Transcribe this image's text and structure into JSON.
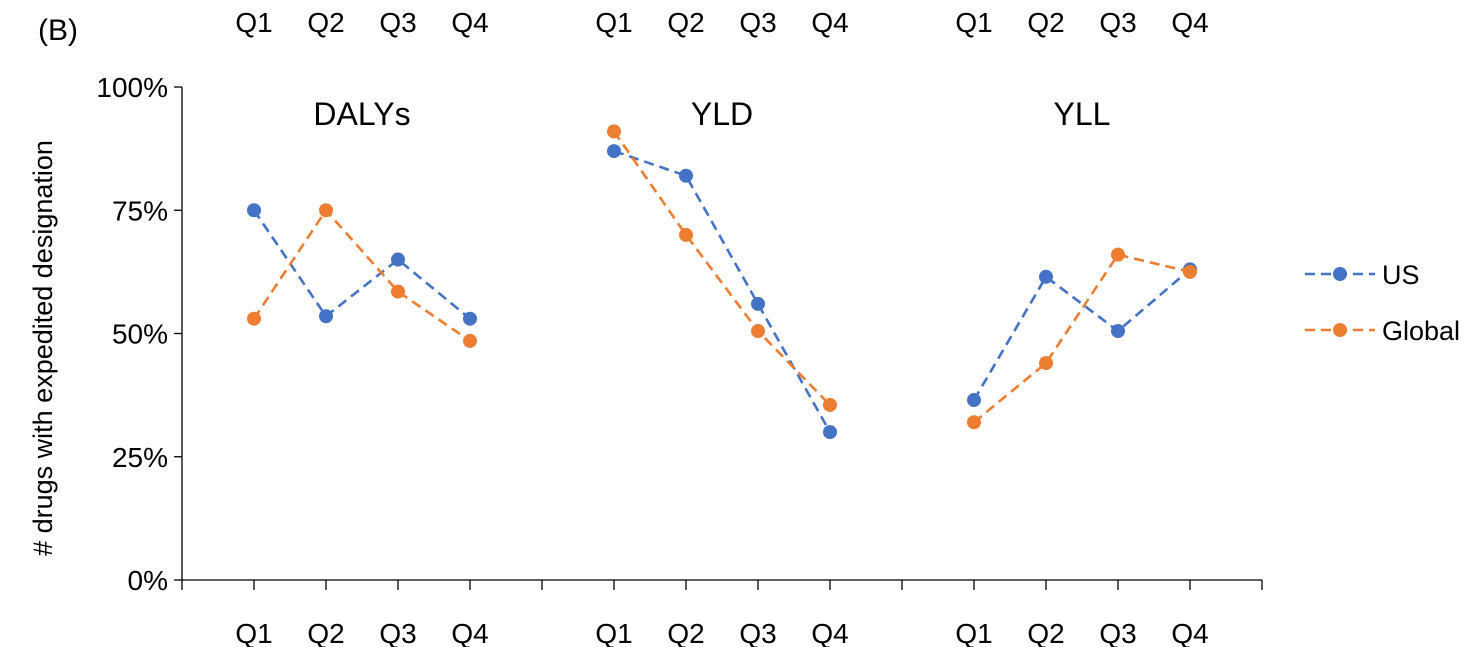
{
  "figure": {
    "panel_tag": "(B)"
  },
  "chart_data": {
    "type": "line",
    "ylabel": "# drugs with expedited designation",
    "ylim": [
      0,
      1
    ],
    "y_ticks": [
      "0%",
      "25%",
      "50%",
      "75%",
      "100%"
    ],
    "y_tick_values": [
      0,
      0.25,
      0.5,
      0.75,
      1.0
    ],
    "grid": false,
    "legend_position": "right",
    "categories": [
      "Q1",
      "Q2",
      "Q3",
      "Q4"
    ],
    "colors": {
      "US": "#4472C4",
      "Global": "#ED7D31"
    },
    "panels": [
      {
        "title": "DALYs",
        "series": [
          {
            "name": "US",
            "values": [
              0.75,
              0.535,
              0.65,
              0.53
            ]
          },
          {
            "name": "Global",
            "values": [
              0.53,
              0.75,
              0.585,
              0.485
            ]
          }
        ]
      },
      {
        "title": "YLD",
        "series": [
          {
            "name": "US",
            "values": [
              0.87,
              0.82,
              0.56,
              0.3
            ]
          },
          {
            "name": "Global",
            "values": [
              0.91,
              0.7,
              0.505,
              0.355
            ]
          }
        ]
      },
      {
        "title": "YLL",
        "series": [
          {
            "name": "US",
            "values": [
              0.365,
              0.615,
              0.505,
              0.63
            ]
          },
          {
            "name": "Global",
            "values": [
              0.32,
              0.44,
              0.66,
              0.625
            ]
          }
        ]
      }
    ]
  }
}
